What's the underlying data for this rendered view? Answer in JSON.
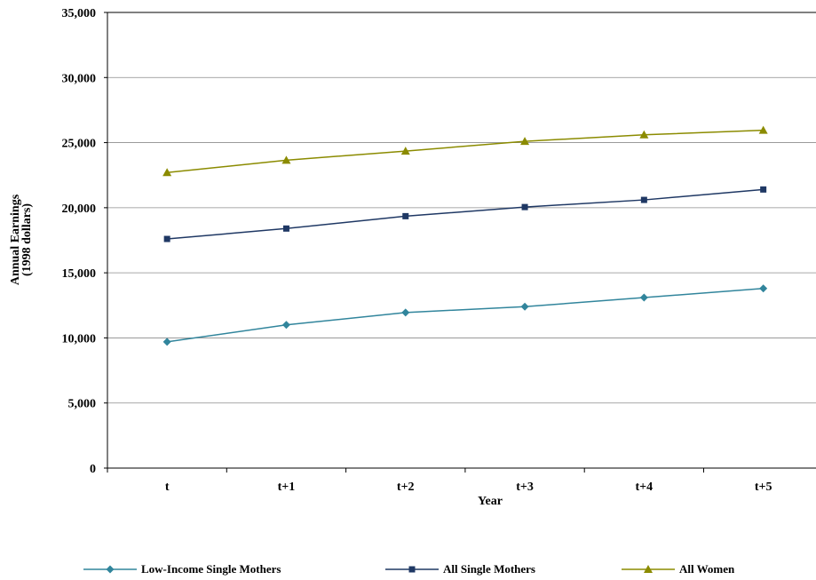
{
  "chart_data": {
    "type": "line",
    "title": "",
    "xlabel": "Year",
    "ylabel": "Annual Earnings",
    "ylabel_line2": "(1998 dollars)",
    "categories": [
      "t",
      "t+1",
      "t+2",
      "t+3",
      "t+4",
      "t+5"
    ],
    "ylim": [
      0,
      35000
    ],
    "yticks": [
      0,
      5000,
      10000,
      15000,
      20000,
      25000,
      30000,
      35000
    ],
    "ytick_labels": [
      "0",
      "5,000",
      "10,000",
      "15,000",
      "20,000",
      "25,000",
      "30,000",
      "35,000"
    ],
    "grid": true,
    "legend_position": "bottom",
    "series": [
      {
        "name": "Low-Income Single Mothers",
        "color": "#31859C",
        "marker": "diamond",
        "values": [
          9700,
          11000,
          11950,
          12400,
          13100,
          13800
        ]
      },
      {
        "name": "All Single Mothers",
        "color": "#1F3864",
        "marker": "square",
        "values": [
          17600,
          18400,
          19350,
          20050,
          20600,
          21400
        ]
      },
      {
        "name": "All Women",
        "color": "#8B8B00",
        "marker": "triangle",
        "values": [
          22700,
          23650,
          24350,
          25100,
          25600,
          25950
        ]
      }
    ]
  }
}
